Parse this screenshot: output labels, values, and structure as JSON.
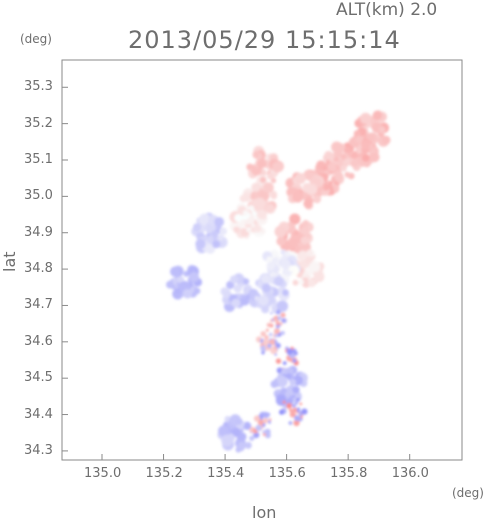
{
  "header": {
    "altitude_label": "ALT(km)  2.0",
    "timestamp": "2013/05/29  15:15:14"
  },
  "chart_data": {
    "type": "heatmap",
    "xlabel": "lon",
    "ylabel": "lat",
    "x_unit": "(deg)",
    "y_unit": "(deg)",
    "xlim": [
      134.87,
      136.17
    ],
    "ylim": [
      34.275,
      35.375
    ],
    "x_ticks": [
      135.0,
      135.2,
      135.4,
      135.6,
      135.8,
      136.0
    ],
    "x_tick_labels": [
      "135.0",
      "135.2",
      "135.4",
      "135.6",
      "135.8",
      "136.0"
    ],
    "y_ticks": [
      34.3,
      34.4,
      34.5,
      34.6,
      34.7,
      34.8,
      34.9,
      35.0,
      35.1,
      35.2,
      35.3
    ],
    "y_tick_labels": [
      "34.3",
      "34.4",
      "34.5",
      "34.6",
      "34.7",
      "34.8",
      "34.9",
      "35.0",
      "35.1",
      "35.2",
      "35.3"
    ],
    "grid": false,
    "colors": {
      "positive": "#f08a8a",
      "negative": "#8c8cf0",
      "axis": "#8a8a8a"
    },
    "echo_regions": [
      {
        "lon": 135.88,
        "lat": 35.18,
        "value": 0.45
      },
      {
        "lon": 135.84,
        "lat": 35.13,
        "value": 0.5
      },
      {
        "lon": 135.78,
        "lat": 35.09,
        "value": 0.45
      },
      {
        "lon": 135.72,
        "lat": 35.05,
        "value": 0.5
      },
      {
        "lon": 135.66,
        "lat": 35.02,
        "value": 0.4
      },
      {
        "lon": 135.53,
        "lat": 35.08,
        "value": 0.35
      },
      {
        "lon": 135.51,
        "lat": 35.0,
        "value": 0.3
      },
      {
        "lon": 135.48,
        "lat": 34.93,
        "value": 0.15
      },
      {
        "lon": 135.63,
        "lat": 34.89,
        "value": 0.45
      },
      {
        "lon": 135.66,
        "lat": 34.8,
        "value": 0.2
      },
      {
        "lon": 135.58,
        "lat": 34.81,
        "value": -0.15
      },
      {
        "lon": 135.45,
        "lat": 34.73,
        "value": -0.35
      },
      {
        "lon": 135.55,
        "lat": 34.73,
        "value": -0.3
      },
      {
        "lon": 135.57,
        "lat": 34.65,
        "value": 0.6
      },
      {
        "lon": 135.54,
        "lat": 34.6,
        "value": -0.6
      },
      {
        "lon": 135.6,
        "lat": 34.55,
        "value": 0.7
      },
      {
        "lon": 135.61,
        "lat": 34.48,
        "value": -0.5
      },
      {
        "lon": 135.62,
        "lat": 34.41,
        "value": 0.7
      },
      {
        "lon": 135.52,
        "lat": 34.37,
        "value": 0.6
      },
      {
        "lon": 135.44,
        "lat": 34.35,
        "value": -0.4
      },
      {
        "lon": 135.35,
        "lat": 34.9,
        "value": -0.3
      },
      {
        "lon": 135.27,
        "lat": 34.76,
        "value": -0.4
      }
    ]
  }
}
